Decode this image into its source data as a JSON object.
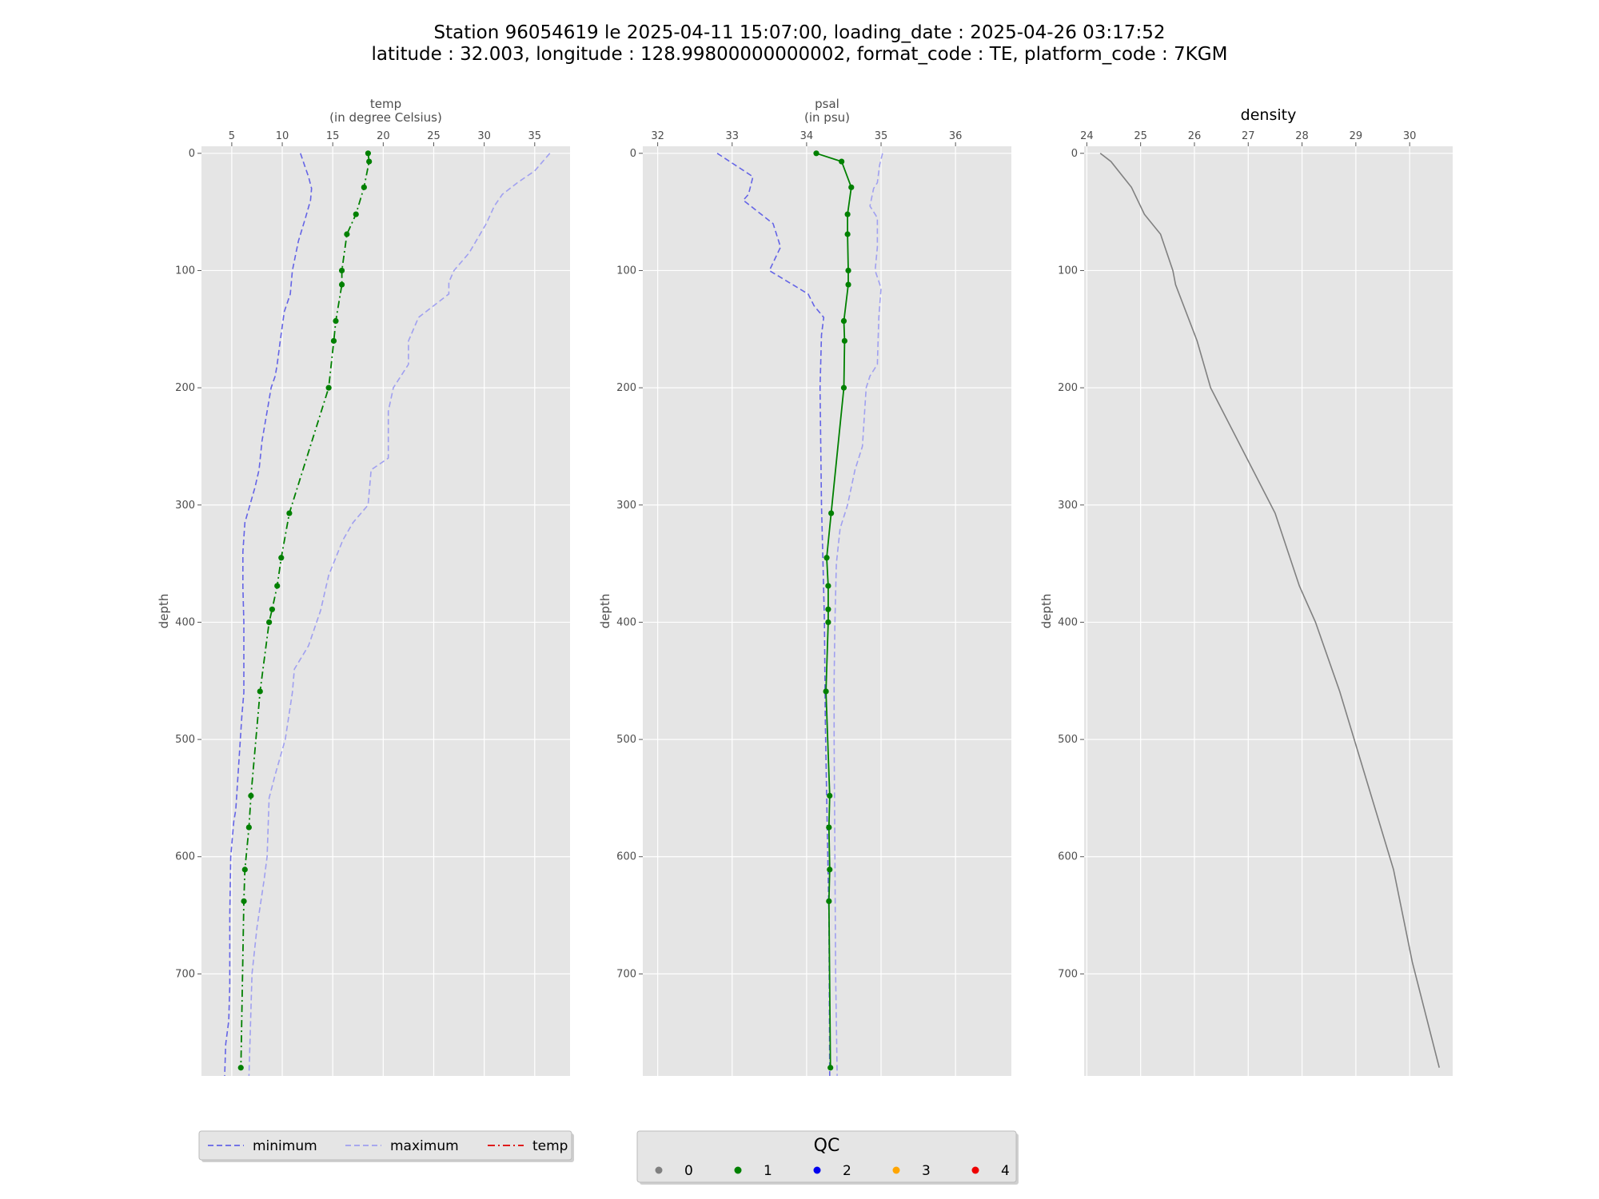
{
  "title_line1": "Station 96054619 le 2025-04-11 15:07:00, loading_date : 2025-04-26 03:17:52",
  "title_line2": "latitude : 32.003, longitude : 128.99800000000002, format_code : TE, platform_code : 7KGM",
  "chart_data": [
    {
      "type": "line",
      "title": "temp",
      "subtitle": "(in degree Celsius)",
      "ylabel": "depth",
      "xlim": [
        2.0,
        38.5
      ],
      "ylim": [
        787,
        -6
      ],
      "xticks": [
        5,
        10,
        15,
        20,
        25,
        30,
        35
      ],
      "yticks": [
        0,
        100,
        200,
        300,
        400,
        500,
        600,
        700
      ],
      "series": [
        {
          "name": "minimum",
          "style": "dashed",
          "color": "#6464e6",
          "x": [
            11.8,
            12.2,
            12.6,
            12.9,
            12.8,
            12.3,
            11.6,
            11.0,
            10.8,
            10.2,
            9.8,
            9.5,
            9.3,
            8.9,
            8.6,
            8.0,
            7.7,
            7.3,
            6.8,
            6.3,
            6.1,
            6.1,
            6.2,
            6.2,
            6.2,
            6.0,
            5.7,
            5.4,
            5.2,
            4.9,
            4.8,
            4.8,
            4.7,
            4.4,
            4.3
          ],
          "y": [
            0,
            10,
            20,
            30,
            40,
            55,
            75,
            100,
            120,
            135,
            160,
            180,
            190,
            200,
            215,
            245,
            270,
            285,
            300,
            315,
            340,
            370,
            400,
            440,
            460,
            480,
            520,
            560,
            570,
            600,
            650,
            710,
            740,
            760,
            787
          ]
        },
        {
          "name": "maximum",
          "style": "dashed",
          "color": "#a0a0f0",
          "x": [
            36.5,
            35.0,
            33.3,
            31.8,
            31.0,
            30.2,
            28.5,
            27.0,
            26.5,
            26.5,
            23.5,
            22.5,
            22.5,
            21.0,
            20.5,
            20.5,
            18.8,
            18.5,
            17.0,
            16.0,
            14.6,
            13.8,
            13.4,
            12.6,
            11.2,
            11.0,
            10.3,
            9.3,
            8.7,
            8.5,
            8.2,
            7.5,
            7.0,
            6.7
          ],
          "y": [
            0,
            15,
            25,
            35,
            45,
            60,
            85,
            100,
            110,
            120,
            140,
            160,
            180,
            200,
            220,
            260,
            270,
            300,
            315,
            330,
            360,
            390,
            400,
            420,
            440,
            460,
            500,
            530,
            550,
            600,
            620,
            660,
            700,
            787
          ]
        },
        {
          "name": "temp",
          "style": "dashdot",
          "color": "#008000",
          "markers": true,
          "x": [
            18.5,
            18.6,
            18.1,
            17.3,
            16.4,
            15.9,
            15.9,
            15.3,
            15.1,
            14.6,
            10.7,
            9.9,
            9.5,
            9.0,
            8.7,
            7.8,
            6.9,
            6.7,
            6.3,
            6.2,
            5.9
          ],
          "y": [
            0,
            7,
            29,
            52,
            69,
            100,
            112,
            143,
            160,
            200,
            307,
            345,
            369,
            389,
            400,
            459,
            548,
            575,
            611,
            638,
            780
          ]
        }
      ]
    },
    {
      "type": "line",
      "title": "psal",
      "subtitle": "(in psu)",
      "ylabel": "depth",
      "xlim": [
        31.8,
        36.75
      ],
      "ylim": [
        787,
        -6
      ],
      "xticks": [
        32,
        33,
        34,
        35,
        36
      ],
      "yticks": [
        0,
        100,
        200,
        300,
        400,
        500,
        600,
        700
      ],
      "series": [
        {
          "name": "minimum",
          "style": "dashed",
          "color": "#6464e6",
          "x": [
            32.8,
            33.28,
            33.22,
            33.15,
            33.55,
            33.65,
            33.5,
            34.02,
            34.1,
            34.23,
            34.2,
            34.18,
            34.19,
            34.2,
            34.22,
            34.24,
            34.25,
            34.27,
            34.3,
            34.31
          ],
          "y": [
            0,
            20,
            35,
            40,
            60,
            80,
            100,
            120,
            130,
            140,
            155,
            200,
            250,
            300,
            350,
            400,
            480,
            550,
            650,
            787
          ]
        },
        {
          "name": "maximum",
          "style": "dashed",
          "color": "#a0a0f0",
          "x": [
            35.02,
            34.98,
            34.95,
            34.9,
            34.85,
            34.95,
            34.95,
            34.92,
            35.0,
            34.97,
            34.95,
            34.85,
            34.8,
            34.78,
            34.75,
            34.65,
            34.55,
            34.45,
            34.4,
            34.38,
            34.37,
            34.37,
            34.38,
            34.39,
            34.41
          ],
          "y": [
            0,
            10,
            25,
            30,
            45,
            55,
            80,
            100,
            115,
            140,
            180,
            190,
            200,
            220,
            250,
            270,
            300,
            320,
            350,
            400,
            450,
            500,
            600,
            700,
            787
          ]
        },
        {
          "name": "psal",
          "style": "solid",
          "color": "#008000",
          "markers": true,
          "x": [
            34.13,
            34.47,
            34.6,
            34.55,
            34.55,
            34.56,
            34.56,
            34.5,
            34.51,
            34.5,
            34.33,
            34.27,
            34.29,
            34.29,
            34.29,
            34.26,
            34.31,
            34.3,
            34.31,
            34.3,
            34.32
          ],
          "y": [
            0,
            7,
            29,
            52,
            69,
            100,
            112,
            143,
            160,
            200,
            307,
            345,
            369,
            389,
            400,
            459,
            548,
            575,
            611,
            638,
            780
          ]
        }
      ]
    },
    {
      "type": "line",
      "title": "density",
      "subtitle": "",
      "ylabel": "depth",
      "xlim": [
        23.95,
        30.8
      ],
      "ylim": [
        787,
        -6
      ],
      "xticks": [
        24,
        25,
        26,
        27,
        28,
        29,
        30
      ],
      "yticks": [
        0,
        100,
        200,
        300,
        400,
        500,
        600,
        700
      ],
      "series": [
        {
          "name": "density",
          "style": "solid",
          "color": "#808080",
          "x": [
            24.25,
            24.45,
            24.83,
            25.07,
            25.37,
            25.6,
            25.65,
            26.05,
            26.3,
            27.5,
            27.95,
            28.25,
            28.7,
            29.7,
            30.05,
            30.55
          ],
          "y": [
            0,
            7,
            29,
            52,
            69,
            100,
            112,
            160,
            200,
            307,
            369,
            400,
            459,
            611,
            690,
            780
          ]
        }
      ]
    }
  ],
  "legend_left": {
    "items": [
      {
        "label": "minimum",
        "color": "#6464e6",
        "style": "dashed"
      },
      {
        "label": "maximum",
        "color": "#a0a0f0",
        "style": "dashed"
      },
      {
        "label": "temp",
        "color": "#e00000",
        "style": "dashdot"
      }
    ]
  },
  "legend_qc": {
    "title": "QC",
    "items": [
      {
        "label": "0",
        "color": "#808080"
      },
      {
        "label": "1",
        "color": "#008000"
      },
      {
        "label": "2",
        "color": "#0000ee"
      },
      {
        "label": "3",
        "color": "#ffa500"
      },
      {
        "label": "4",
        "color": "#ee0000"
      }
    ]
  }
}
